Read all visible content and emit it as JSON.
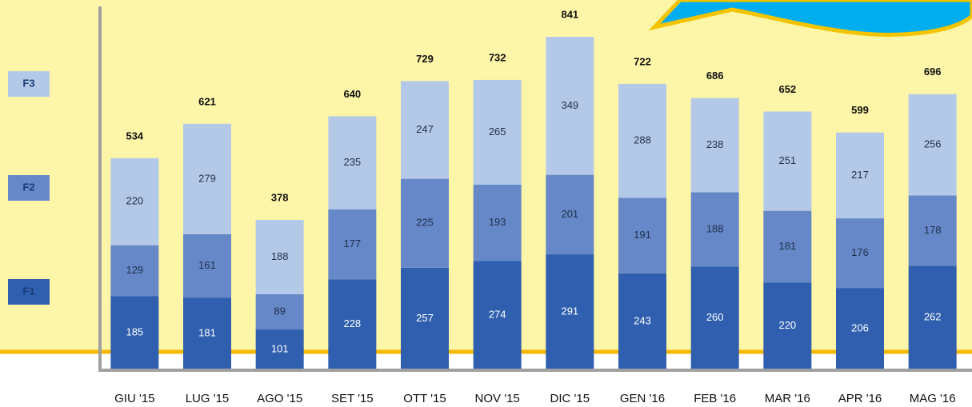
{
  "chart_data": {
    "type": "stacked_bar",
    "categories": [
      "GIU '15",
      "LUG '15",
      "AGO '15",
      "SET '15",
      "OTT '15",
      "NOV '15",
      "DIC '15",
      "GEN '16",
      "FEB '16",
      "MAR '16",
      "APR '16",
      "MAG '16"
    ],
    "series": [
      {
        "name": "F1",
        "color": "#2f5fae",
        "values": [
          185,
          181,
          101,
          228,
          257,
          274,
          291,
          243,
          260,
          220,
          206,
          262
        ]
      },
      {
        "name": "F2",
        "color": "#6688c8",
        "values": [
          129,
          161,
          89,
          177,
          225,
          193,
          201,
          191,
          188,
          181,
          176,
          178
        ]
      },
      {
        "name": "F3",
        "color": "#b4c9e8",
        "values": [
          220,
          279,
          188,
          235,
          247,
          265,
          349,
          288,
          238,
          251,
          217,
          256
        ]
      }
    ],
    "totals": [
      534,
      621,
      378,
      640,
      729,
      732,
      841,
      722,
      686,
      652,
      599,
      696
    ],
    "ylim": [
      0,
      934
    ]
  }
}
